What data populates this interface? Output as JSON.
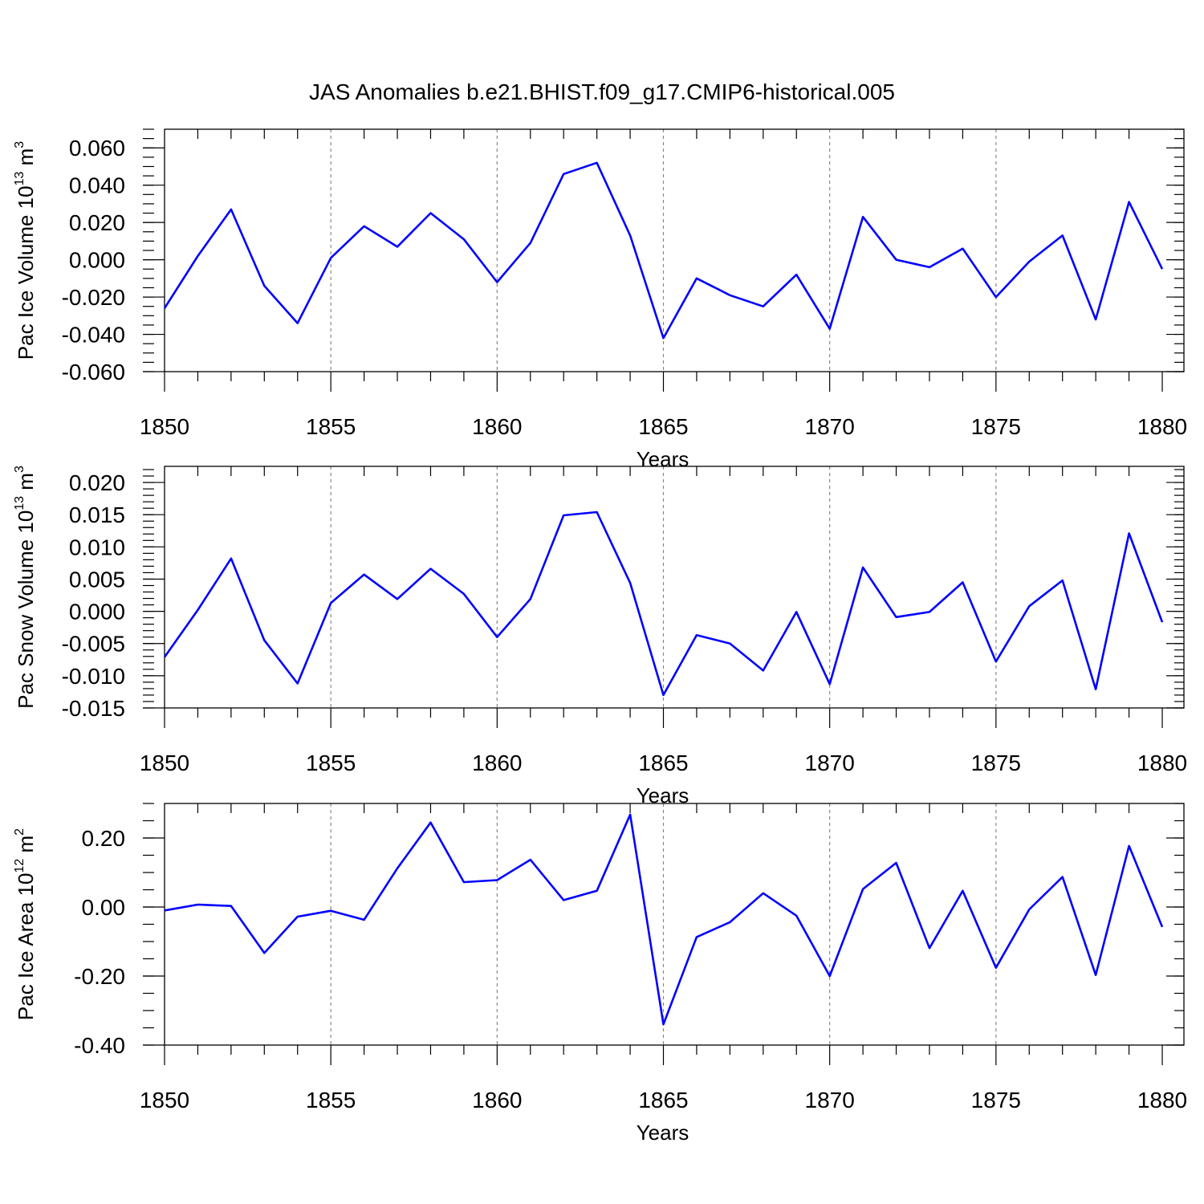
{
  "page_title": "JAS Anomalies b.e21.BHIST.f09_g17.CMIP6-historical.005",
  "colors": {
    "series": "#0000ff",
    "grid": "#888888",
    "axis": "#000000"
  },
  "chart_data": [
    {
      "type": "line",
      "ylabel": "Pac Ice Volume",
      "ylabel_unit_base": "10",
      "ylabel_unit_exp": "13",
      "ylabel_unit_tail": "m",
      "ylabel_unit_tail_exp": "3",
      "xlabel": "Years",
      "xlim": [
        1850,
        1880
      ],
      "ylim": [
        -0.06,
        0.07
      ],
      "x_tick_values": [
        1850,
        1855,
        1860,
        1865,
        1870,
        1875,
        1880
      ],
      "x_tick_labels": [
        "1850",
        "1855",
        "1860",
        "1865",
        "1870",
        "1875",
        "1880"
      ],
      "y_tick_values": [
        -0.06,
        -0.04,
        -0.02,
        0.0,
        0.02,
        0.04,
        0.06
      ],
      "y_tick_labels": [
        "-0.060",
        "-0.040",
        "-0.020",
        "0.000",
        "0.020",
        "0.040",
        "0.060"
      ],
      "y_minor_step": 0.005,
      "grid_x": [
        1855,
        1860,
        1865,
        1870,
        1875
      ],
      "series": [
        {
          "name": "Pac Ice Volume",
          "x": [
            1850,
            1851,
            1852,
            1853,
            1854,
            1855,
            1856,
            1857,
            1858,
            1859,
            1860,
            1861,
            1862,
            1863,
            1864,
            1865,
            1866,
            1867,
            1868,
            1869,
            1870,
            1871,
            1872,
            1873,
            1874,
            1875,
            1876,
            1877,
            1878,
            1879,
            1880
          ],
          "values": [
            -0.026,
            0.002,
            0.027,
            -0.014,
            -0.034,
            0.001,
            0.018,
            0.007,
            0.025,
            0.011,
            -0.012,
            0.009,
            0.046,
            0.052,
            0.013,
            -0.042,
            -0.01,
            -0.019,
            -0.025,
            -0.008,
            -0.037,
            0.023,
            0.0,
            -0.004,
            0.006,
            -0.02,
            -0.001,
            0.013,
            -0.032,
            0.031,
            -0.005
          ]
        }
      ]
    },
    {
      "type": "line",
      "ylabel": "Pac Snow Volume",
      "ylabel_unit_base": "10",
      "ylabel_unit_exp": "13",
      "ylabel_unit_tail": "m",
      "ylabel_unit_tail_exp": "3",
      "xlabel": "Years",
      "xlim": [
        1850,
        1880
      ],
      "ylim": [
        -0.015,
        0.0225
      ],
      "x_tick_values": [
        1850,
        1855,
        1860,
        1865,
        1870,
        1875,
        1880
      ],
      "x_tick_labels": [
        "1850",
        "1855",
        "1860",
        "1865",
        "1870",
        "1875",
        "1880"
      ],
      "y_tick_values": [
        -0.015,
        -0.01,
        -0.005,
        0.0,
        0.005,
        0.01,
        0.015,
        0.02
      ],
      "y_tick_labels": [
        "-0.015",
        "-0.010",
        "-0.005",
        "0.000",
        "0.005",
        "0.010",
        "0.015",
        "0.020"
      ],
      "y_minor_step": 0.001,
      "grid_x": [
        1855,
        1860,
        1865,
        1870,
        1875
      ],
      "series": [
        {
          "name": "Pac Snow Volume",
          "x": [
            1850,
            1851,
            1852,
            1853,
            1854,
            1855,
            1856,
            1857,
            1858,
            1859,
            1860,
            1861,
            1862,
            1863,
            1864,
            1865,
            1866,
            1867,
            1868,
            1869,
            1870,
            1871,
            1872,
            1873,
            1874,
            1875,
            1876,
            1877,
            1878,
            1879,
            1880
          ],
          "values": [
            -0.0071,
            0.0002,
            0.0082,
            -0.0045,
            -0.0112,
            0.0013,
            0.0057,
            0.0019,
            0.0066,
            0.0027,
            -0.004,
            0.0019,
            0.0149,
            0.0154,
            0.0044,
            -0.013,
            -0.0037,
            -0.005,
            -0.0092,
            -0.0001,
            -0.0113,
            0.0068,
            -0.0009,
            -0.0001,
            0.0045,
            -0.0078,
            0.0008,
            0.0048,
            -0.0121,
            0.0121,
            -0.0017
          ]
        }
      ]
    },
    {
      "type": "line",
      "ylabel": "Pac Ice Area",
      "ylabel_unit_base": "10",
      "ylabel_unit_exp": "12",
      "ylabel_unit_tail": "m",
      "ylabel_unit_tail_exp": "2",
      "xlabel": "Years",
      "xlim": [
        1850,
        1880
      ],
      "ylim": [
        -0.4,
        0.3
      ],
      "x_tick_values": [
        1850,
        1855,
        1860,
        1865,
        1870,
        1875,
        1880
      ],
      "x_tick_labels": [
        "1850",
        "1855",
        "1860",
        "1865",
        "1870",
        "1875",
        "1880"
      ],
      "y_tick_values": [
        -0.4,
        -0.2,
        0.0,
        0.2
      ],
      "y_tick_labels": [
        "-0.40",
        "-0.20",
        "0.00",
        "0.20"
      ],
      "y_minor_step": 0.05,
      "grid_x": [
        1855,
        1860,
        1865,
        1870,
        1875
      ],
      "series": [
        {
          "name": "Pac Ice Area",
          "x": [
            1850,
            1851,
            1852,
            1853,
            1854,
            1855,
            1856,
            1857,
            1858,
            1859,
            1860,
            1861,
            1862,
            1863,
            1864,
            1865,
            1866,
            1867,
            1868,
            1869,
            1870,
            1871,
            1872,
            1873,
            1874,
            1875,
            1876,
            1877,
            1878,
            1879,
            1880
          ],
          "values": [
            -0.01,
            0.007,
            0.003,
            -0.133,
            -0.028,
            -0.011,
            -0.037,
            0.112,
            0.245,
            0.072,
            0.078,
            0.137,
            0.02,
            0.047,
            0.268,
            -0.34,
            -0.087,
            -0.044,
            0.04,
            -0.025,
            -0.2,
            0.052,
            0.128,
            -0.119,
            0.047,
            -0.176,
            -0.007,
            0.087,
            -0.197,
            0.177,
            -0.058
          ]
        }
      ]
    }
  ]
}
